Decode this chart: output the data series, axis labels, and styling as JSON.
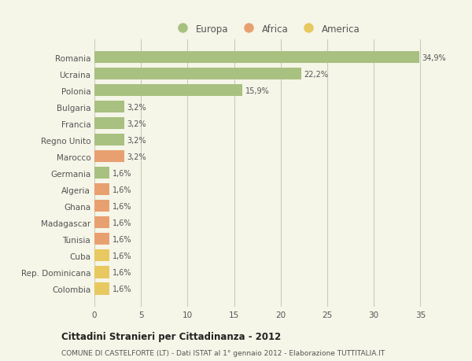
{
  "categories": [
    "Romania",
    "Ucraina",
    "Polonia",
    "Bulgaria",
    "Francia",
    "Regno Unito",
    "Marocco",
    "Germania",
    "Algeria",
    "Ghana",
    "Madagascar",
    "Tunisia",
    "Cuba",
    "Rep. Dominicana",
    "Colombia"
  ],
  "values": [
    34.9,
    22.2,
    15.9,
    3.2,
    3.2,
    3.2,
    3.2,
    1.6,
    1.6,
    1.6,
    1.6,
    1.6,
    1.6,
    1.6,
    1.6
  ],
  "colors": [
    "#a8c080",
    "#a8c080",
    "#a8c080",
    "#a8c080",
    "#a8c080",
    "#a8c080",
    "#e8a070",
    "#a8c080",
    "#e8a070",
    "#e8a070",
    "#e8a070",
    "#e8a070",
    "#e8c860",
    "#e8c860",
    "#e8c860"
  ],
  "labels": [
    "34,9%",
    "22,2%",
    "15,9%",
    "3,2%",
    "3,2%",
    "3,2%",
    "3,2%",
    "1,6%",
    "1,6%",
    "1,6%",
    "1,6%",
    "1,6%",
    "1,6%",
    "1,6%",
    "1,6%"
  ],
  "legend_labels": [
    "Europa",
    "Africa",
    "America"
  ],
  "legend_colors": [
    "#a8c080",
    "#e8a070",
    "#e8c860"
  ],
  "title": "Cittadini Stranieri per Cittadinanza - 2012",
  "subtitle": "COMUNE DI CASTELFORTE (LT) - Dati ISTAT al 1° gennaio 2012 - Elaborazione TUTTITALIA.IT",
  "xlim": [
    0,
    37
  ],
  "xticks": [
    0,
    5,
    10,
    15,
    20,
    25,
    30,
    35
  ],
  "background_color": "#f5f5e8",
  "grid_color": "#ccccbb",
  "text_color": "#555555",
  "bar_height": 0.72
}
